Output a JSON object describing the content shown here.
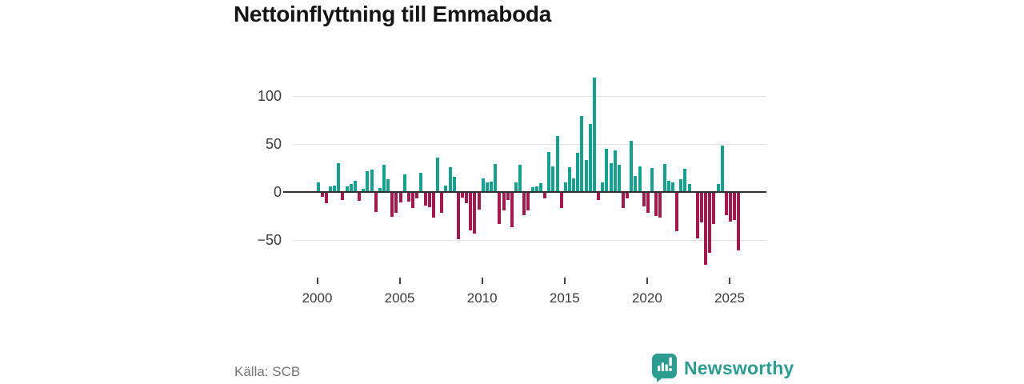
{
  "title": "Nettoinflyttning till Emmaboda",
  "source": "Källa: SCB",
  "brand": "Newsworthy",
  "colors": {
    "positive": "#17a08f",
    "negative": "#a01a4d",
    "brand": "#2d9c90",
    "grid": "#e2e2e2",
    "axis": "#2f2f2f",
    "tick_text": "#3a3a3a",
    "muted_text": "#757575"
  },
  "chart_data": {
    "type": "bar",
    "title": "Nettoinflyttning till Emmaboda",
    "x_start": "2000-Q1",
    "x_interval": "quarter",
    "x_tick_years": [
      2000,
      2005,
      2010,
      2015,
      2020,
      2025
    ],
    "y_ticks": [
      100,
      50,
      0,
      -50
    ],
    "y_tick_labels": [
      "100",
      "50",
      "0",
      "−50"
    ],
    "ylim": [
      -85,
      125
    ],
    "grid": true,
    "legend": "none",
    "positive_color": "#17a08f",
    "negative_color": "#a01a4d",
    "values": [
      10,
      -5,
      -12,
      6,
      7,
      30,
      -8,
      6,
      8,
      12,
      -9,
      3,
      22,
      23,
      -21,
      4,
      28,
      13,
      -26,
      -22,
      -11,
      18,
      -10,
      -17,
      -7,
      20,
      -14,
      -16,
      -27,
      36,
      -22,
      7,
      26,
      16,
      -49,
      -6,
      -12,
      -40,
      -43,
      -18,
      14,
      10,
      11,
      29,
      -33,
      -19,
      -8,
      -37,
      10,
      28,
      -24,
      -19,
      5,
      6,
      9,
      -7,
      42,
      27,
      58,
      -17,
      10,
      26,
      14,
      41,
      79,
      33,
      71,
      119,
      -8,
      10,
      45,
      30,
      43,
      28,
      -17,
      -7,
      53,
      17,
      27,
      -15,
      -22,
      25,
      -25,
      -27,
      29,
      12,
      10,
      -41,
      13,
      24,
      8,
      0,
      -48,
      -32,
      -76,
      -63,
      -33,
      8,
      48,
      -24,
      -31,
      -29,
      -61
    ]
  }
}
